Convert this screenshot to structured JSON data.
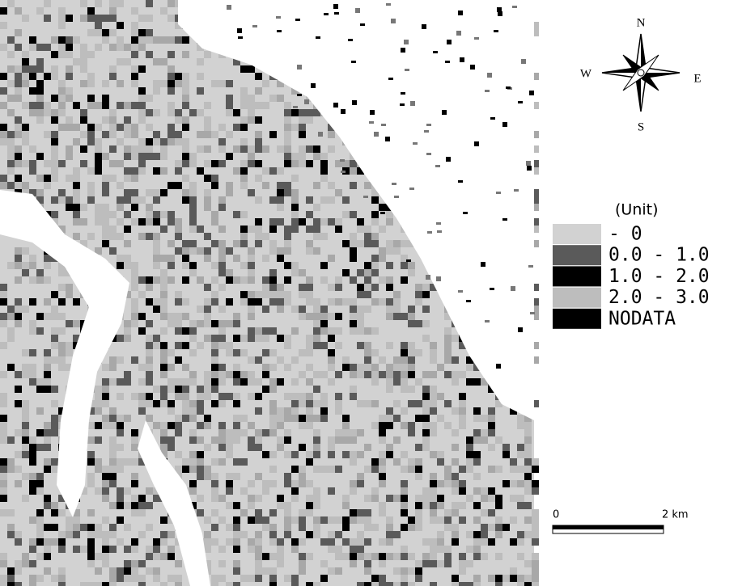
{
  "compass": {
    "north": "N",
    "south": "S",
    "west": "W",
    "east": "E"
  },
  "legend": {
    "title": "(Unit)",
    "items": [
      {
        "label": "- 0",
        "color": "#d2d2d2"
      },
      {
        "label": "0.0 - 1.0",
        "color": "#5a5a5a"
      },
      {
        "label": "1.0 - 2.0",
        "color": "#000000"
      },
      {
        "label": "2.0 - 3.0",
        "color": "#bdbdbd"
      },
      {
        "label": "NODATA",
        "color": "#000000"
      }
    ]
  },
  "scale_bar": {
    "start": "0",
    "end": "2 km"
  }
}
